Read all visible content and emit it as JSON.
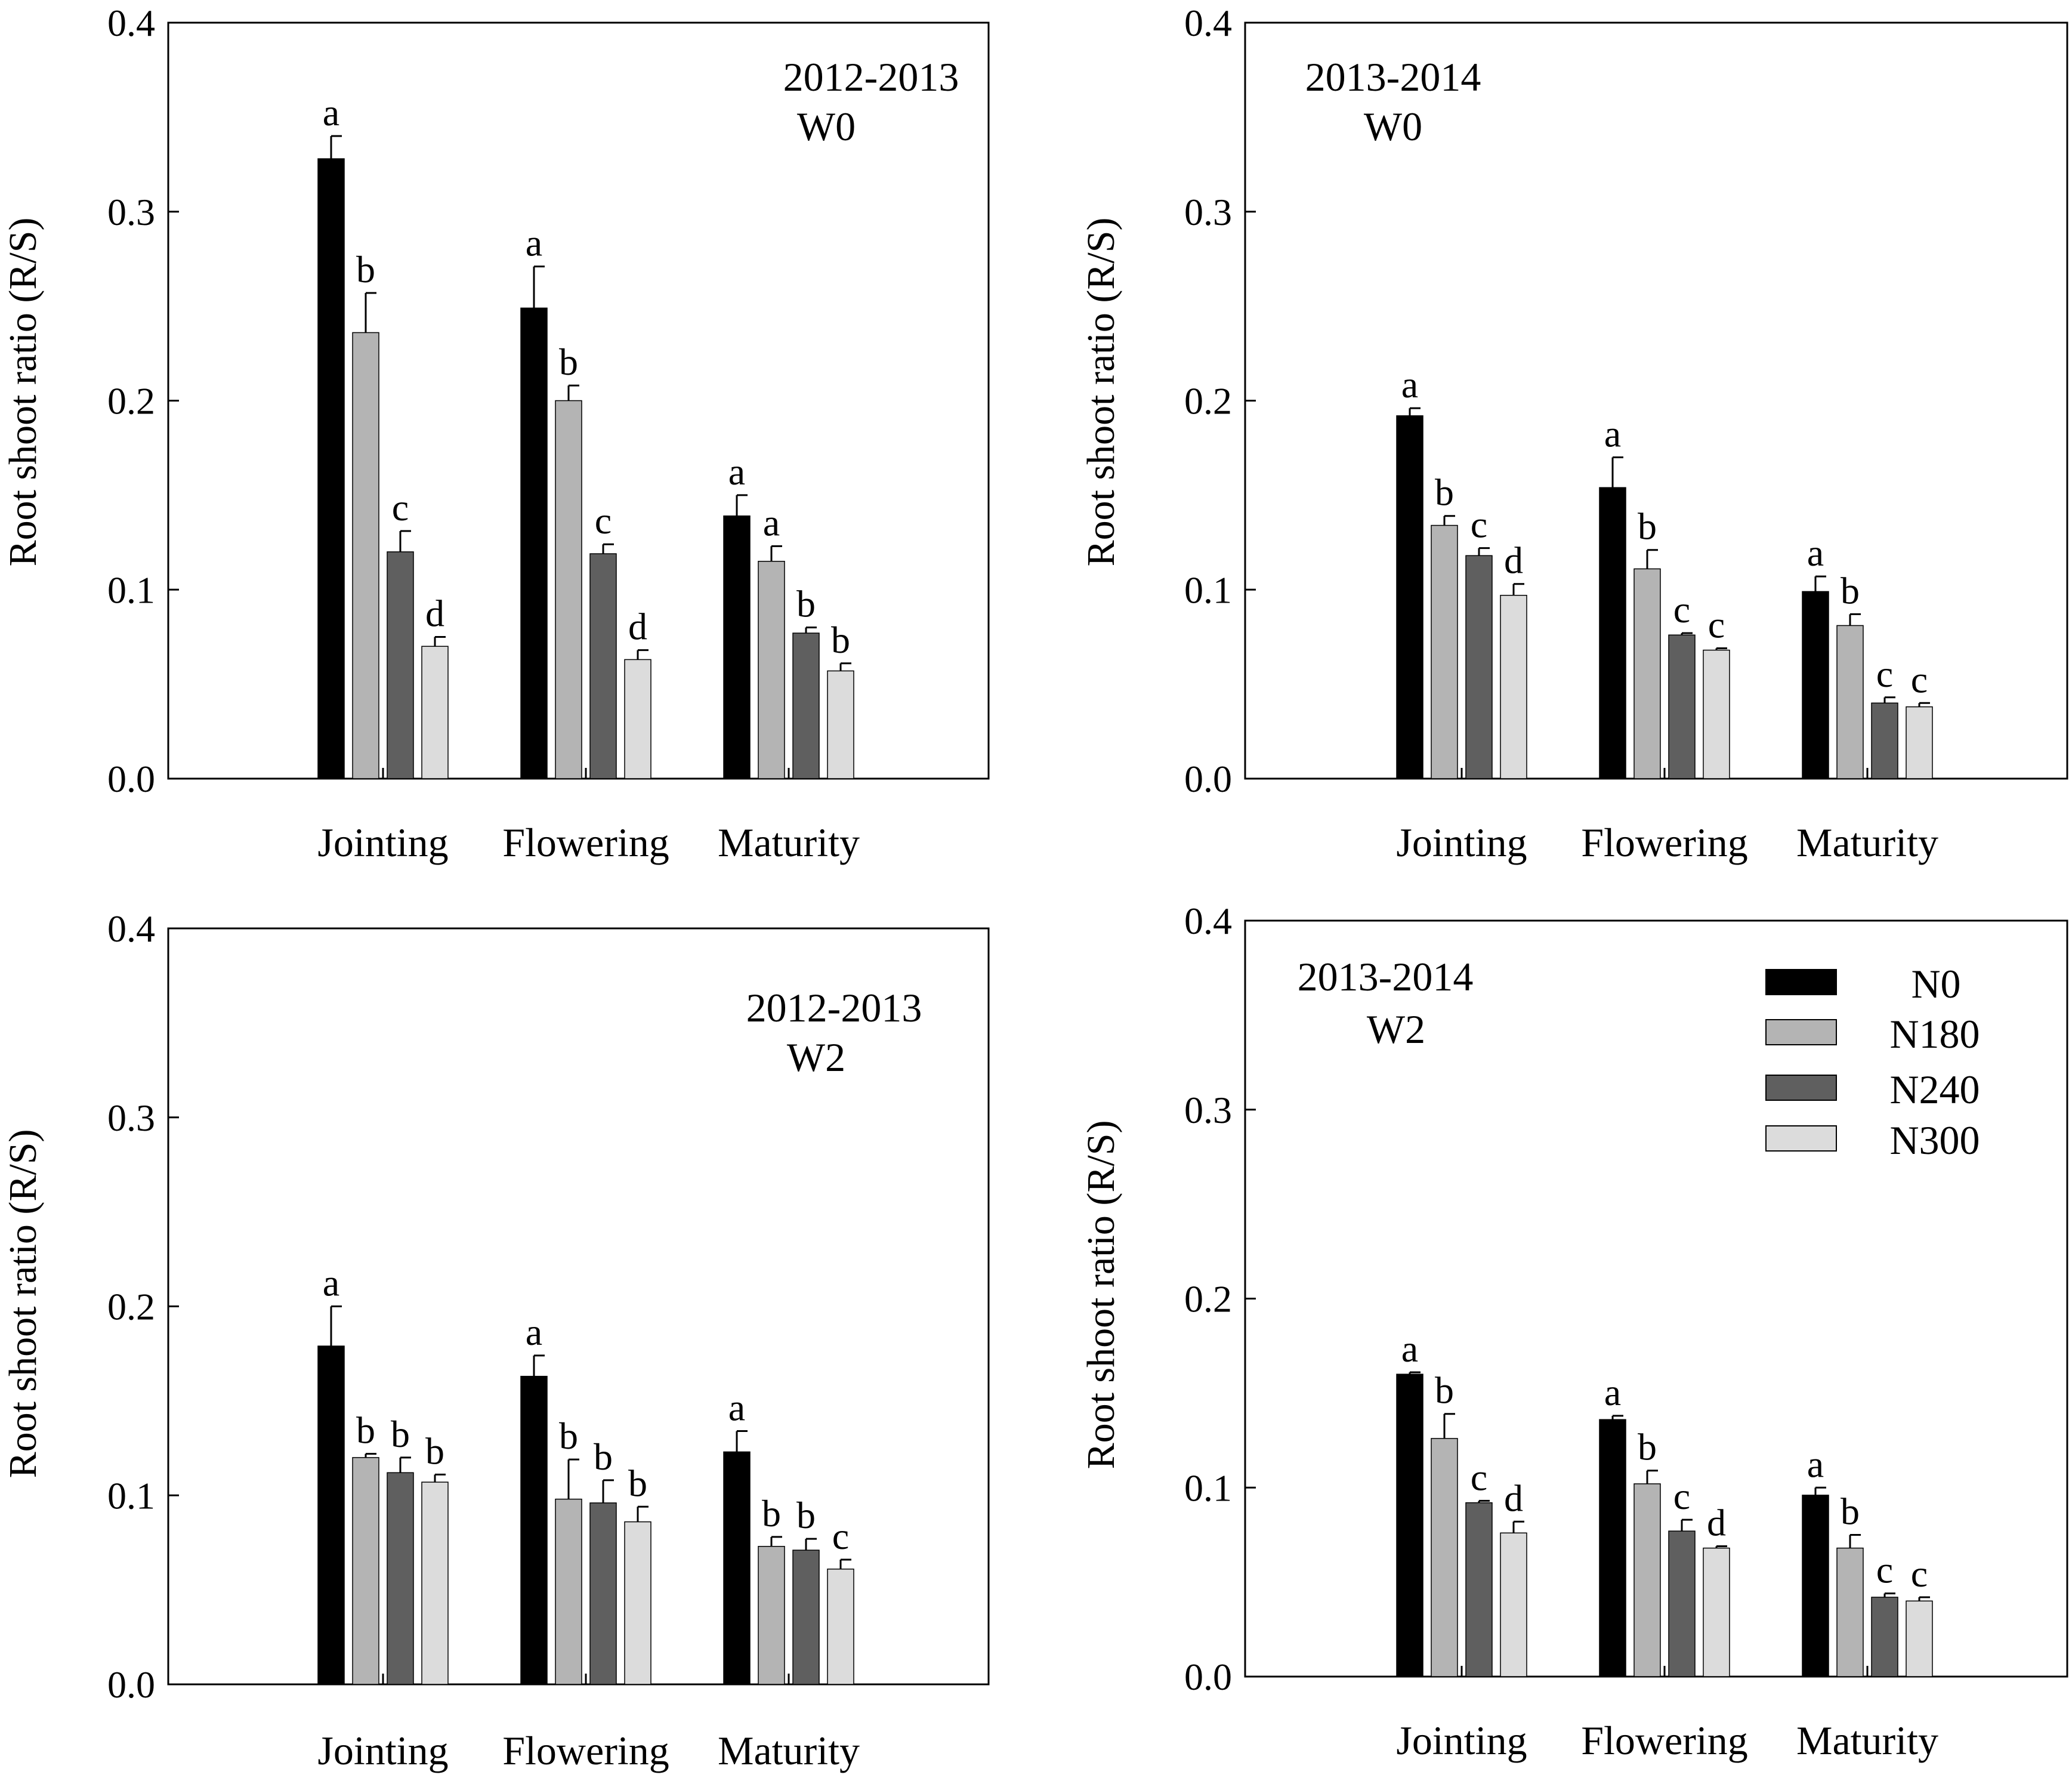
{
  "figure": {
    "legend": [
      {
        "label": "N0",
        "color": "#000000"
      },
      {
        "label": "N180",
        "color": "#b4b4b4"
      },
      {
        "label": "N240",
        "color": "#5f5f5f"
      },
      {
        "label": "N300",
        "color": "#dcdcdc"
      }
    ]
  },
  "chart_data": [
    {
      "type": "bar",
      "title": "2012-2013",
      "subtitle": "W0",
      "ylabel": "Root shoot ratio (R/S)",
      "xlabel": "",
      "ylim": [
        0,
        0.4
      ],
      "yticks": [
        "0.0",
        "0.1",
        "0.2",
        "0.3",
        "0.4"
      ],
      "categories": [
        "Jointing",
        "Flowering",
        "Maturity"
      ],
      "series": [
        {
          "name": "N0",
          "values": [
            0.328,
            0.249,
            0.139
          ],
          "errors": [
            0.012,
            0.022,
            0.011
          ],
          "letters": [
            "a",
            "a",
            "a"
          ]
        },
        {
          "name": "N180",
          "values": [
            0.236,
            0.2,
            0.115
          ],
          "errors": [
            0.021,
            0.008,
            0.008
          ],
          "letters": [
            "b",
            "b",
            "a"
          ]
        },
        {
          "name": "N240",
          "values": [
            0.12,
            0.119,
            0.077
          ],
          "errors": [
            0.011,
            0.005,
            0.003
          ],
          "letters": [
            "c",
            "c",
            "b"
          ]
        },
        {
          "name": "N300",
          "values": [
            0.07,
            0.063,
            0.057
          ],
          "errors": [
            0.005,
            0.005,
            0.004
          ],
          "letters": [
            "d",
            "d",
            "b"
          ]
        }
      ]
    },
    {
      "type": "bar",
      "title": "2013-2014",
      "subtitle": "W0",
      "ylabel": "Root shoot ratio (R/S)",
      "xlabel": "",
      "ylim": [
        0,
        0.4
      ],
      "yticks": [
        "0.0",
        "0.1",
        "0.2",
        "0.3",
        "0.4"
      ],
      "categories": [
        "Jointing",
        "Flowering",
        "Maturity"
      ],
      "series": [
        {
          "name": "N0",
          "values": [
            0.192,
            0.154,
            0.099
          ],
          "errors": [
            0.004,
            0.016,
            0.008
          ],
          "letters": [
            "a",
            "a",
            "a"
          ]
        },
        {
          "name": "N180",
          "values": [
            0.134,
            0.111,
            0.081
          ],
          "errors": [
            0.005,
            0.01,
            0.006
          ],
          "letters": [
            "b",
            "b",
            "b"
          ]
        },
        {
          "name": "N240",
          "values": [
            0.118,
            0.076,
            0.04
          ],
          "errors": [
            0.004,
            0.001,
            0.003
          ],
          "letters": [
            "c",
            "c",
            "c"
          ]
        },
        {
          "name": "N300",
          "values": [
            0.097,
            0.068,
            0.038
          ],
          "errors": [
            0.006,
            0.001,
            0.002
          ],
          "letters": [
            "d",
            "c",
            "c"
          ]
        }
      ]
    },
    {
      "type": "bar",
      "title": "2012-2013",
      "subtitle": "W2",
      "ylabel": "Root shoot ratio (R/S)",
      "xlabel": "",
      "ylim": [
        0,
        0.4
      ],
      "yticks": [
        "0.0",
        "0.1",
        "0.2",
        "0.3",
        "0.4"
      ],
      "categories": [
        "Jointing",
        "Flowering",
        "Maturity"
      ],
      "series": [
        {
          "name": "N0",
          "values": [
            0.179,
            0.163,
            0.123
          ],
          "errors": [
            0.021,
            0.011,
            0.011
          ],
          "letters": [
            "a",
            "a",
            "a"
          ]
        },
        {
          "name": "N180",
          "values": [
            0.12,
            0.098,
            0.073
          ],
          "errors": [
            0.002,
            0.021,
            0.005
          ],
          "letters": [
            "b",
            "b",
            "b"
          ]
        },
        {
          "name": "N240",
          "values": [
            0.112,
            0.096,
            0.071
          ],
          "errors": [
            0.008,
            0.012,
            0.006
          ],
          "letters": [
            "b",
            "b",
            "b"
          ]
        },
        {
          "name": "N300",
          "values": [
            0.107,
            0.086,
            0.061
          ],
          "errors": [
            0.004,
            0.008,
            0.005
          ],
          "letters": [
            "b",
            "b",
            "c"
          ]
        }
      ]
    },
    {
      "type": "bar",
      "title": "2013-2014",
      "subtitle": "W2",
      "ylabel": "Root shoot ratio (R/S)",
      "xlabel": "",
      "ylim": [
        0,
        0.4
      ],
      "yticks": [
        "0.0",
        "0.1",
        "0.2",
        "0.3",
        "0.4"
      ],
      "categories": [
        "Jointing",
        "Flowering",
        "Maturity"
      ],
      "series": [
        {
          "name": "N0",
          "values": [
            0.16,
            0.136,
            0.096
          ],
          "errors": [
            0.001,
            0.002,
            0.004
          ],
          "letters": [
            "a",
            "a",
            "a"
          ]
        },
        {
          "name": "N180",
          "values": [
            0.126,
            0.102,
            0.068
          ],
          "errors": [
            0.013,
            0.007,
            0.007
          ],
          "letters": [
            "b",
            "b",
            "b"
          ]
        },
        {
          "name": "N240",
          "values": [
            0.092,
            0.077,
            0.042
          ],
          "errors": [
            0.001,
            0.006,
            0.002
          ],
          "letters": [
            "c",
            "c",
            "c"
          ]
        },
        {
          "name": "N300",
          "values": [
            0.076,
            0.068,
            0.04
          ],
          "errors": [
            0.006,
            0.001,
            0.002
          ],
          "letters": [
            "d",
            "d",
            "c"
          ]
        }
      ]
    }
  ]
}
